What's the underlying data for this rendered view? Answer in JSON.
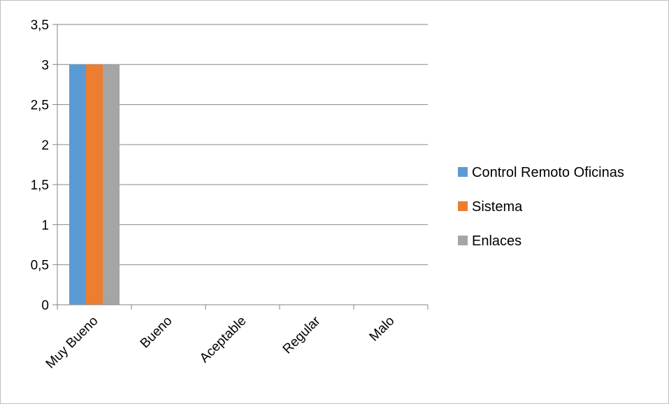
{
  "chart_data": {
    "type": "bar",
    "title": "",
    "xlabel": "",
    "ylabel": "",
    "categories": [
      "Muy Bueno",
      "Bueno",
      "Aceptable",
      "Regular",
      "Malo"
    ],
    "series": [
      {
        "name": "Control Remoto Oficinas",
        "color": "#5b9bd5",
        "values": [
          3,
          0,
          0,
          0,
          0
        ]
      },
      {
        "name": "Sistema",
        "color": "#ed7d31",
        "values": [
          3,
          0,
          0,
          0,
          0
        ]
      },
      {
        "name": "Enlaces",
        "color": "#a5a5a5",
        "values": [
          3,
          0,
          0,
          0,
          0
        ]
      }
    ],
    "y_ticks": [
      "0",
      "0,5",
      "1",
      "1,5",
      "2",
      "2,5",
      "3",
      "3,5"
    ],
    "ylim": [
      0,
      3.5
    ],
    "grid": true,
    "legend_position": "right"
  }
}
